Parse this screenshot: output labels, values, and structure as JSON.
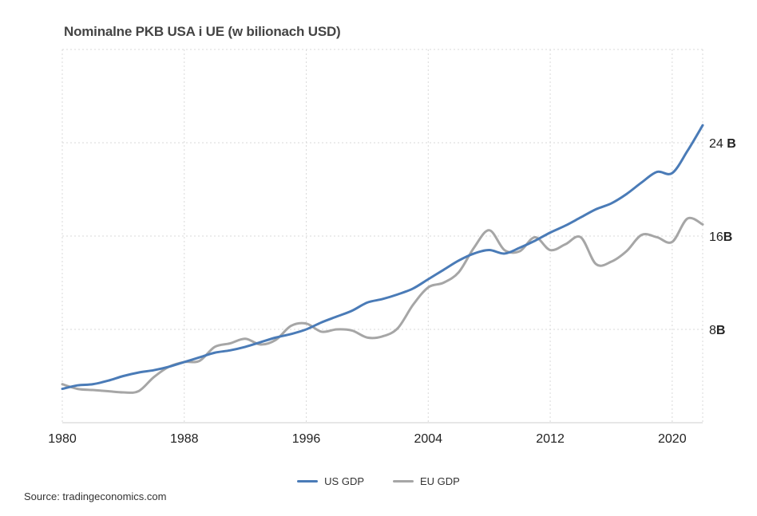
{
  "chart_data": {
    "type": "line",
    "title": "Nominalne PKB USA i UE (w bilionach USD)",
    "xlabel": "",
    "ylabel": "",
    "xlim": [
      1980,
      2022
    ],
    "ylim": [
      0,
      32
    ],
    "x_ticks": [
      1980,
      1988,
      1996,
      2004,
      2012,
      2020
    ],
    "y_ticks": [
      {
        "value": 8,
        "label": "8",
        "unit": "B"
      },
      {
        "value": 16,
        "label": "16",
        "unit": "B"
      },
      {
        "value": 24,
        "label": "24 ",
        "unit": "B"
      }
    ],
    "grid": true,
    "legend_position": "bottom-center",
    "x": [
      1980,
      1981,
      1982,
      1983,
      1984,
      1985,
      1986,
      1987,
      1988,
      1989,
      1990,
      1991,
      1992,
      1993,
      1994,
      1995,
      1996,
      1997,
      1998,
      1999,
      2000,
      2001,
      2002,
      2003,
      2004,
      2005,
      2006,
      2007,
      2008,
      2009,
      2010,
      2011,
      2012,
      2013,
      2014,
      2015,
      2016,
      2017,
      2018,
      2019,
      2020,
      2021,
      2022
    ],
    "series": [
      {
        "name": "US GDP",
        "color": "#4a7bb7",
        "values": [
          2.9,
          3.2,
          3.3,
          3.6,
          4.0,
          4.3,
          4.5,
          4.8,
          5.2,
          5.6,
          6.0,
          6.2,
          6.5,
          6.9,
          7.3,
          7.6,
          8.0,
          8.6,
          9.1,
          9.6,
          10.3,
          10.6,
          11.0,
          11.5,
          12.3,
          13.1,
          13.9,
          14.5,
          14.8,
          14.5,
          15.0,
          15.6,
          16.3,
          16.9,
          17.6,
          18.3,
          18.8,
          19.6,
          20.6,
          21.5,
          21.4,
          23.3,
          25.5
        ]
      },
      {
        "name": "EU GDP",
        "color": "#a6a6a6",
        "values": [
          3.3,
          2.9,
          2.8,
          2.7,
          2.6,
          2.7,
          3.9,
          4.8,
          5.2,
          5.3,
          6.5,
          6.8,
          7.2,
          6.7,
          7.1,
          8.3,
          8.5,
          7.8,
          8.0,
          7.9,
          7.3,
          7.4,
          8.1,
          10.1,
          11.6,
          12.0,
          12.9,
          15.0,
          16.5,
          14.8,
          14.7,
          15.9,
          14.8,
          15.3,
          15.9,
          13.6,
          13.8,
          14.7,
          16.1,
          15.9,
          15.5,
          17.5,
          17.0
        ]
      }
    ],
    "source": "Source: tradingeconomics.com"
  }
}
